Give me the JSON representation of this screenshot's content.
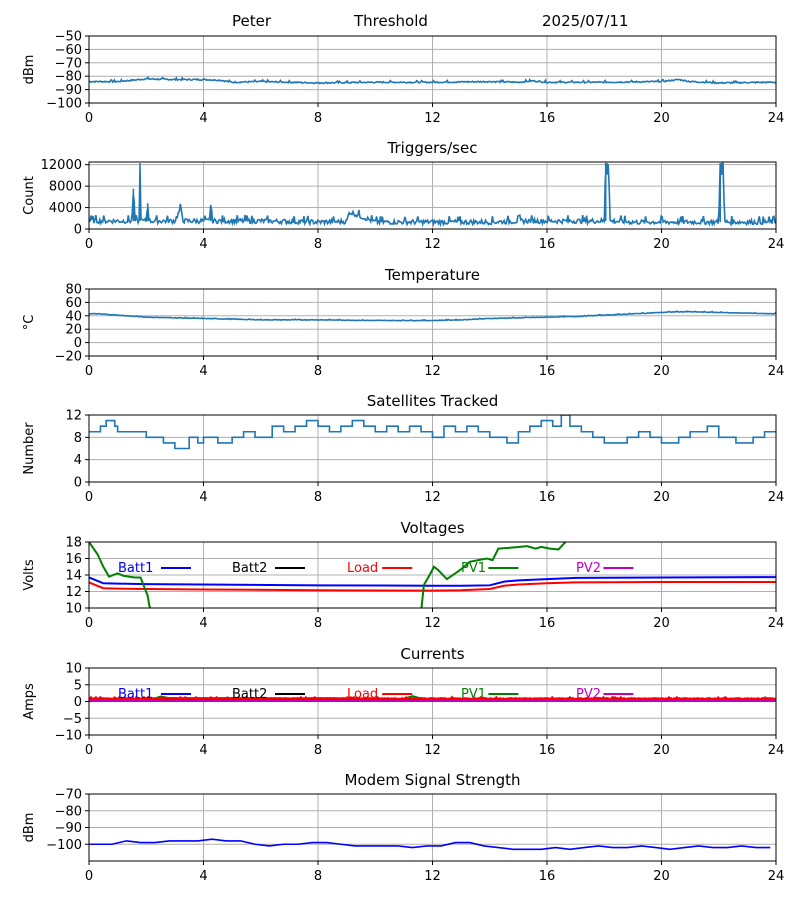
{
  "header": {
    "station": "Peter",
    "mode": "Threshold",
    "date": "2025/07/11"
  },
  "colors": {
    "default_series": "#1f77b4",
    "batt1": "#0000ff",
    "batt2": "#000000",
    "load": "#ff0000",
    "pv1": "#008000",
    "pv2": "#bf00bf",
    "grid": "#b0b0b0"
  },
  "chart_data": [
    {
      "type": "line",
      "title": "",
      "ylabel": "dBm",
      "xlim": [
        0,
        24
      ],
      "ylim": [
        -100,
        -50
      ],
      "xticks": [
        0,
        4,
        8,
        12,
        16,
        20,
        24
      ],
      "yticks": [
        -100,
        -90,
        -80,
        -70,
        -60,
        -50
      ],
      "ytick_labels": [
        "−100",
        "−90",
        "−80",
        "−70",
        "−60",
        "−50"
      ],
      "grid": true,
      "series": [
        {
          "color": "#1f77b4",
          "noise": 0.5,
          "x": [
            0,
            1,
            1.5,
            2,
            3,
            4,
            4.6,
            5,
            6,
            8,
            10,
            12,
            14,
            15,
            15.5,
            16,
            18,
            20,
            20.6,
            21,
            22,
            24
          ],
          "y": [
            -84,
            -84,
            -83,
            -82,
            -82.5,
            -82.5,
            -83,
            -84.5,
            -84,
            -85,
            -84.5,
            -84.5,
            -84,
            -84.5,
            -83.5,
            -84.5,
            -84.5,
            -84,
            -82.5,
            -84,
            -85,
            -84.5
          ]
        }
      ]
    },
    {
      "type": "line",
      "title": "Triggers/sec",
      "ylabel": "Count",
      "xlim": [
        0,
        24
      ],
      "ylim": [
        0,
        12500
      ],
      "xticks": [
        0,
        4,
        8,
        12,
        16,
        20,
        24
      ],
      "yticks": [
        0,
        4000,
        8000,
        12000
      ],
      "ytick_labels": [
        "0",
        "4000",
        "8000",
        "12000"
      ],
      "grid": true,
      "series": [
        {
          "color": "#1f77b4",
          "noise": 450,
          "x": [
            0,
            1,
            1.5,
            1.55,
            1.6,
            1.75,
            1.78,
            1.82,
            2.0,
            2.05,
            2.1,
            3,
            3.2,
            3.3,
            4.2,
            4.25,
            4.3,
            6,
            7,
            8,
            9,
            9.1,
            10,
            12,
            14,
            15.2,
            16,
            18.0,
            18.05,
            18.1,
            18.15,
            18.2,
            19,
            20,
            21,
            22.0,
            22.05,
            22.1,
            22.15,
            22.2,
            23,
            24
          ],
          "y": [
            1500,
            1500,
            1500,
            7500,
            1500,
            1500,
            12300,
            1500,
            1500,
            4800,
            1500,
            1500,
            3800,
            1500,
            1500,
            4500,
            1500,
            1500,
            1400,
            1300,
            1400,
            3200,
            1300,
            1300,
            1300,
            1500,
            1500,
            1500,
            12300,
            12300,
            12300,
            1500,
            1300,
            1300,
            1300,
            1300,
            12300,
            12300,
            12300,
            1300,
            1300,
            1300
          ]
        }
      ]
    },
    {
      "type": "line",
      "title": "Temperature",
      "ylabel": "°C",
      "xlim": [
        0,
        24
      ],
      "ylim": [
        -20,
        80
      ],
      "xticks": [
        0,
        4,
        8,
        12,
        16,
        20,
        24
      ],
      "yticks": [
        -20,
        0,
        20,
        40,
        60,
        80
      ],
      "ytick_labels": [
        "−20",
        "0",
        "20",
        "40",
        "60",
        "80"
      ],
      "grid": true,
      "series": [
        {
          "color": "#1f77b4",
          "noise": 0.4,
          "x": [
            0,
            0.3,
            1,
            2,
            3,
            4,
            5,
            6,
            8,
            10,
            12,
            13,
            14,
            15,
            16,
            17,
            18,
            19,
            20,
            20.5,
            21,
            22,
            23,
            24
          ],
          "y": [
            43,
            43,
            41,
            38,
            37,
            36,
            35,
            34,
            34,
            33,
            33,
            34,
            36,
            37,
            38,
            39,
            41,
            43,
            45,
            46,
            46,
            45,
            44,
            43
          ]
        }
      ]
    },
    {
      "type": "line",
      "step": true,
      "title": "Satellites Tracked",
      "ylabel": "Number",
      "xlim": [
        0,
        24
      ],
      "ylim": [
        0,
        12
      ],
      "xticks": [
        0,
        4,
        8,
        12,
        16,
        20,
        24
      ],
      "yticks": [
        0,
        4,
        8,
        12
      ],
      "ytick_labels": [
        "0",
        "4",
        "8",
        "12"
      ],
      "grid": true,
      "series": [
        {
          "color": "#1f77b4",
          "noise": 0,
          "x": [
            0,
            0.4,
            0.6,
            0.9,
            1.0,
            2.0,
            2.6,
            3.0,
            3.5,
            3.8,
            4.0,
            4.5,
            5.0,
            5.4,
            5.8,
            6.4,
            6.8,
            7.2,
            7.6,
            8.0,
            8.4,
            8.8,
            9.2,
            9.6,
            10.0,
            10.4,
            10.8,
            11.2,
            11.6,
            12.0,
            12.4,
            12.8,
            13.2,
            13.6,
            14.0,
            14.6,
            15.0,
            15.4,
            15.8,
            16.2,
            16.5,
            16.8,
            17.2,
            17.6,
            18.0,
            18.8,
            19.2,
            19.6,
            20.0,
            20.6,
            21.0,
            21.6,
            22.0,
            22.6,
            23.2,
            23.6,
            24
          ],
          "y": [
            9,
            10,
            11,
            10,
            9,
            8,
            7,
            6,
            8,
            7,
            8,
            7,
            8,
            9,
            8,
            10,
            9,
            10,
            11,
            10,
            9,
            10,
            11,
            10,
            9,
            10,
            9,
            10,
            9,
            8,
            10,
            9,
            10,
            9,
            8,
            7,
            9,
            10,
            11,
            10,
            12,
            10,
            9,
            8,
            7,
            8,
            9,
            8,
            7,
            8,
            9,
            10,
            8,
            7,
            8,
            9,
            9
          ]
        }
      ]
    },
    {
      "type": "line",
      "title": "Voltages",
      "ylabel": "Volts",
      "xlim": [
        0,
        24
      ],
      "ylim": [
        10,
        18
      ],
      "xticks": [
        0,
        4,
        8,
        12,
        16,
        20,
        24
      ],
      "yticks": [
        10,
        12,
        14,
        16,
        18
      ],
      "ytick_labels": [
        "10",
        "12",
        "14",
        "16",
        "18"
      ],
      "grid": true,
      "legend": [
        "Batt1",
        "Batt2",
        "Load",
        "PV1",
        "PV2"
      ],
      "legend_colors": [
        "#0000ff",
        "#000000",
        "#ff0000",
        "#008000",
        "#bf00bf"
      ],
      "series": [
        {
          "name": "Batt1",
          "color": "#0000ff",
          "noise": 0,
          "x": [
            0,
            0.5,
            1,
            2,
            4,
            8,
            12,
            13,
            14,
            14.5,
            15,
            16,
            17,
            20,
            24
          ],
          "y": [
            13.7,
            13.0,
            12.95,
            12.9,
            12.85,
            12.75,
            12.7,
            12.7,
            12.75,
            13.2,
            13.35,
            13.5,
            13.65,
            13.7,
            13.75
          ]
        },
        {
          "name": "Load",
          "color": "#ff0000",
          "noise": 0,
          "x": [
            0,
            0.5,
            1,
            2,
            4,
            8,
            12,
            13,
            14,
            14.5,
            15,
            16,
            17,
            20,
            24
          ],
          "y": [
            13.1,
            12.4,
            12.35,
            12.3,
            12.25,
            12.15,
            12.1,
            12.15,
            12.3,
            12.7,
            12.85,
            13.0,
            13.1,
            13.15,
            13.15
          ]
        },
        {
          "name": "PV1",
          "color": "#008000",
          "noise": 0,
          "x": [
            0,
            0.3,
            0.5,
            0.7,
            1.0,
            1.2,
            1.6,
            1.75,
            1.8,
            2.05,
            2.1,
            2.2,
            2.25
          ],
          "y": [
            18.0,
            16.5,
            15.0,
            13.8,
            14.2,
            13.9,
            13.7,
            13.7,
            13.7,
            11.5,
            10.4,
            9.2,
            8.0
          ]
        },
        {
          "name": "PV1",
          "color": "#008000",
          "noise": 0,
          "x": [
            11.6,
            11.7,
            11.9,
            12.05,
            12.2,
            12.5,
            12.8,
            13.0,
            13.3,
            13.6,
            13.9,
            14.1,
            14.3,
            14.7,
            15.0,
            15.3,
            15.6,
            15.8,
            16.1,
            16.4,
            16.7,
            16.9
          ],
          "y": [
            9.5,
            12.8,
            14.0,
            15.0,
            14.6,
            13.5,
            14.2,
            14.7,
            15.6,
            15.8,
            16.0,
            15.8,
            17.2,
            17.3,
            17.4,
            17.5,
            17.2,
            17.4,
            17.2,
            17.1,
            18.2,
            19.0
          ]
        }
      ]
    },
    {
      "type": "line",
      "title": "Currents",
      "ylabel": "Amps",
      "xlim": [
        0,
        24
      ],
      "ylim": [
        -10,
        10
      ],
      "xticks": [
        0,
        4,
        8,
        12,
        16,
        20,
        24
      ],
      "yticks": [
        -10,
        -5,
        0,
        5,
        10
      ],
      "ytick_labels": [
        "−10",
        "−5",
        "0",
        "5",
        "10"
      ],
      "grid": true,
      "legend": [
        "Batt1",
        "Batt2",
        "Load",
        "PV1",
        "PV2"
      ],
      "legend_colors": [
        "#0000ff",
        "#000000",
        "#ff0000",
        "#008000",
        "#bf00bf"
      ],
      "series": [
        {
          "name": "Batt1",
          "color": "#0000ff",
          "noise": 0,
          "x": [
            0,
            24
          ],
          "y": [
            0.4,
            0.4
          ]
        },
        {
          "name": "PV1",
          "color": "#008000",
          "noise": 0,
          "x": [
            0,
            2.2,
            2.5,
            2.8,
            4,
            6,
            7,
            8,
            10,
            11,
            11.3,
            11.6,
            12,
            24
          ],
          "y": [
            0.6,
            0.6,
            1.5,
            1.0,
            1.0,
            1.0,
            0.9,
            1.0,
            0.9,
            0.8,
            1.6,
            0.9,
            0.6,
            0.6
          ]
        },
        {
          "name": "Load",
          "color": "#ff0000",
          "noise": 0.15,
          "x": [
            0,
            24
          ],
          "y": [
            0.9,
            0.9
          ]
        },
        {
          "name": "PV2",
          "color": "#bf00bf",
          "noise": 0,
          "x": [
            0,
            24
          ],
          "y": [
            0.15,
            0.15
          ]
        }
      ]
    },
    {
      "type": "line",
      "title": "Modem Signal Strength",
      "ylabel": "dBm",
      "xlim": [
        0,
        24
      ],
      "ylim": [
        -110,
        -70
      ],
      "xticks": [
        0,
        4,
        8,
        12,
        16,
        20,
        24
      ],
      "yticks": [
        -100,
        -90,
        -80,
        -70
      ],
      "ytick_labels": [
        "−100",
        "−90",
        "−80",
        "−70"
      ],
      "grid": true,
      "series": [
        {
          "color": "#0000ff",
          "noise": 0,
          "x": [
            0,
            0.8,
            1.3,
            1.8,
            2.3,
            2.8,
            3.3,
            3.8,
            4.3,
            4.8,
            5.3,
            5.8,
            6.3,
            6.8,
            7.3,
            7.8,
            8.3,
            8.8,
            9.3,
            9.8,
            10.3,
            10.8,
            11.3,
            11.8,
            12.3,
            12.8,
            13.3,
            13.8,
            14.3,
            14.8,
            15.3,
            15.8,
            16.3,
            16.8,
            17.3,
            17.8,
            18.3,
            18.8,
            19.3,
            19.8,
            20.3,
            20.8,
            21.3,
            21.8,
            22.3,
            22.8,
            23.3,
            23.8
          ],
          "y": [
            -100,
            -100,
            -98,
            -99,
            -99,
            -98,
            -98,
            -98,
            -97,
            -98,
            -98,
            -100,
            -101,
            -100,
            -100,
            -99,
            -99,
            -100,
            -101,
            -101,
            -101,
            -101,
            -102,
            -101,
            -101,
            -99,
            -99,
            -101,
            -102,
            -103,
            -103,
            -103,
            -102,
            -103,
            -102,
            -101,
            -102,
            -102,
            -101,
            -102,
            -103,
            -102,
            -101,
            -102,
            -102,
            -101,
            -102,
            -102
          ]
        }
      ]
    }
  ]
}
